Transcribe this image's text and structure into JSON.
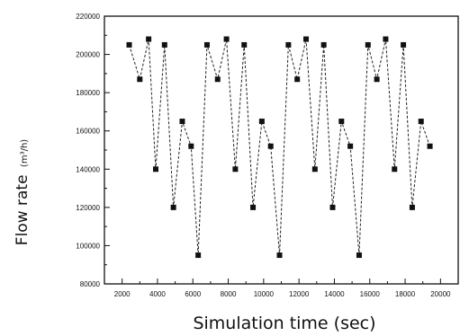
{
  "chart_data": {
    "type": "line",
    "xlabel": "Simulation time (sec)",
    "ylabel_main": "Flow rate",
    "ylabel_unit": "(m³/h)",
    "xlim": [
      1000,
      21000
    ],
    "ylim": [
      80000,
      220000
    ],
    "xticks": [
      2000,
      4000,
      6000,
      8000,
      10000,
      12000,
      14000,
      16000,
      18000,
      20000
    ],
    "yticks": [
      80000,
      100000,
      120000,
      140000,
      160000,
      180000,
      200000,
      220000
    ],
    "grid": false,
    "marker": "square",
    "line_style": "dashed",
    "series": [
      {
        "x": [
          2400,
          3000,
          3500,
          3900,
          4400,
          4900,
          5400,
          5900,
          6300,
          6800,
          7400,
          7900,
          8400,
          8900,
          9400,
          9900,
          10400,
          10900,
          11400,
          11900,
          12400,
          12900,
          13400,
          13900,
          14400,
          14900,
          15400,
          15900,
          16400,
          16900,
          17400,
          17900,
          18400,
          18900,
          19400
        ],
        "y": [
          205000,
          187000,
          208000,
          140000,
          205000,
          120000,
          165000,
          152000,
          95000,
          205000,
          187000,
          208000,
          140000,
          205000,
          120000,
          165000,
          152000,
          95000,
          205000,
          187000,
          208000,
          140000,
          205000,
          120000,
          165000,
          152000,
          95000,
          205000,
          187000,
          208000,
          140000,
          205000,
          120000,
          165000,
          152000
        ]
      }
    ]
  }
}
